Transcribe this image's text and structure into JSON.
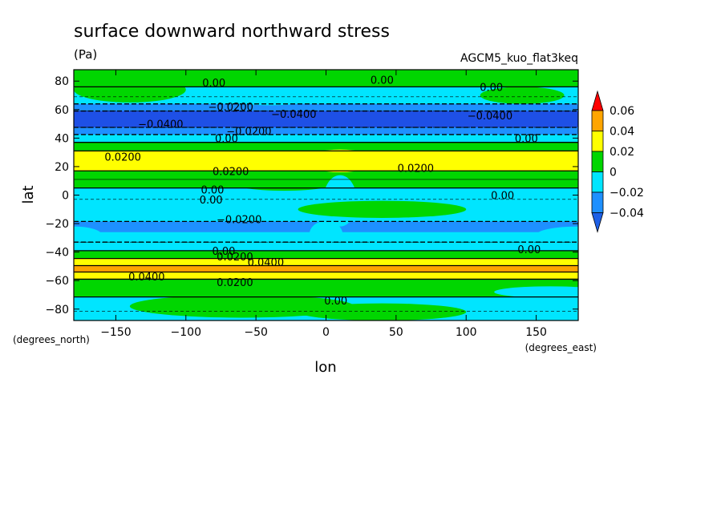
{
  "chart_data": {
    "type": "heatmap",
    "title": "surface downward northward stress",
    "units": "(Pa)",
    "subtitle_right": "AGCM5_kuo_flat3keq",
    "xlabel": "lon",
    "ylabel": "lat",
    "x_units": "(degrees_east)",
    "y_units": "(degrees_north)",
    "xlim": [
      -180,
      180
    ],
    "ylim": [
      -88,
      88
    ],
    "x_ticks": [
      -150,
      -100,
      -50,
      0,
      50,
      100,
      150
    ],
    "y_ticks": [
      -80,
      -60,
      -40,
      -20,
      0,
      20,
      40,
      60,
      80
    ],
    "x_tick_labels": [
      "−150",
      "−100",
      "−50",
      "0",
      "50",
      "100",
      "150"
    ],
    "y_tick_labels": [
      "−80",
      "−60",
      "−40",
      "−20",
      "0",
      "20",
      "40",
      "60",
      "80"
    ],
    "colorbar": {
      "levels": [
        -0.04,
        -0.02,
        0,
        0.02,
        0.04,
        0.06
      ],
      "labels": [
        "−0.04",
        "−0.02",
        "0",
        "0.02",
        "0.04",
        "0.06"
      ],
      "colors": [
        "#1e90ff",
        "#00e5ff",
        "#00d600",
        "#ffff00",
        "#ffa500",
        "#ff0000"
      ],
      "under_color": "#1e60e6",
      "deep_color": "#1e50e6"
    },
    "zonal_profile": [
      {
        "lat": 88,
        "value": 0.005
      },
      {
        "lat": 80,
        "value": 0.004
      },
      {
        "lat": 72,
        "value": -0.008
      },
      {
        "lat": 66,
        "value": -0.015
      },
      {
        "lat": 62,
        "value": -0.03
      },
      {
        "lat": 56,
        "value": -0.045
      },
      {
        "lat": 50,
        "value": -0.045
      },
      {
        "lat": 45,
        "value": -0.03
      },
      {
        "lat": 40,
        "value": -0.01
      },
      {
        "lat": 34,
        "value": 0.01
      },
      {
        "lat": 28,
        "value": 0.025
      },
      {
        "lat": 20,
        "value": 0.025
      },
      {
        "lat": 14,
        "value": 0.012
      },
      {
        "lat": 8,
        "value": 0.004
      },
      {
        "lat": 2,
        "value": -0.006
      },
      {
        "lat": -8,
        "value": -0.012
      },
      {
        "lat": -15,
        "value": -0.018
      },
      {
        "lat": -22,
        "value": -0.025
      },
      {
        "lat": -30,
        "value": -0.02
      },
      {
        "lat": -36,
        "value": -0.006
      },
      {
        "lat": -42,
        "value": 0.015
      },
      {
        "lat": -47,
        "value": 0.03
      },
      {
        "lat": -52,
        "value": 0.045
      },
      {
        "lat": -56,
        "value": 0.03
      },
      {
        "lat": -62,
        "value": 0.01
      },
      {
        "lat": -68,
        "value": 0.001
      },
      {
        "lat": -75,
        "value": -0.008
      },
      {
        "lat": -88,
        "value": -0.01
      }
    ],
    "contour_labels": [
      {
        "lon": -80,
        "lat": 79,
        "text": "0.00"
      },
      {
        "lon": 40,
        "lat": 81,
        "text": "0.00"
      },
      {
        "lon": 118,
        "lat": 76,
        "text": "0.00"
      },
      {
        "lon": -68,
        "lat": 62,
        "text": "−0.0200"
      },
      {
        "lon": -23,
        "lat": 57,
        "text": "−0.0400"
      },
      {
        "lon": 117,
        "lat": 56,
        "text": "−0.0400"
      },
      {
        "lon": -118,
        "lat": 50,
        "text": "−0.0400"
      },
      {
        "lon": -55,
        "lat": 45,
        "text": "−0.0200"
      },
      {
        "lon": -71,
        "lat": 40,
        "text": "0.00"
      },
      {
        "lon": 143,
        "lat": 40,
        "text": "0.00"
      },
      {
        "lon": -145,
        "lat": 27,
        "text": "0.0200"
      },
      {
        "lon": -68,
        "lat": 17,
        "text": "0.0200"
      },
      {
        "lon": 64,
        "lat": 19,
        "text": "0.0200"
      },
      {
        "lon": -81,
        "lat": 4,
        "text": "0.00"
      },
      {
        "lon": -82,
        "lat": -3,
        "text": "0.00"
      },
      {
        "lon": 126,
        "lat": 0,
        "text": "0.00"
      },
      {
        "lon": -62,
        "lat": -17,
        "text": "−0.0200"
      },
      {
        "lon": -73,
        "lat": -39,
        "text": "0.00"
      },
      {
        "lon": -65,
        "lat": -43,
        "text": "0.0200"
      },
      {
        "lon": -43,
        "lat": -47,
        "text": "0.0400"
      },
      {
        "lon": 145,
        "lat": -38,
        "text": "0.00"
      },
      {
        "lon": -128,
        "lat": -57,
        "text": "0.0400"
      },
      {
        "lon": -65,
        "lat": -61,
        "text": "0.0200"
      },
      {
        "lon": 7,
        "lat": -74,
        "text": "0.00"
      }
    ]
  }
}
